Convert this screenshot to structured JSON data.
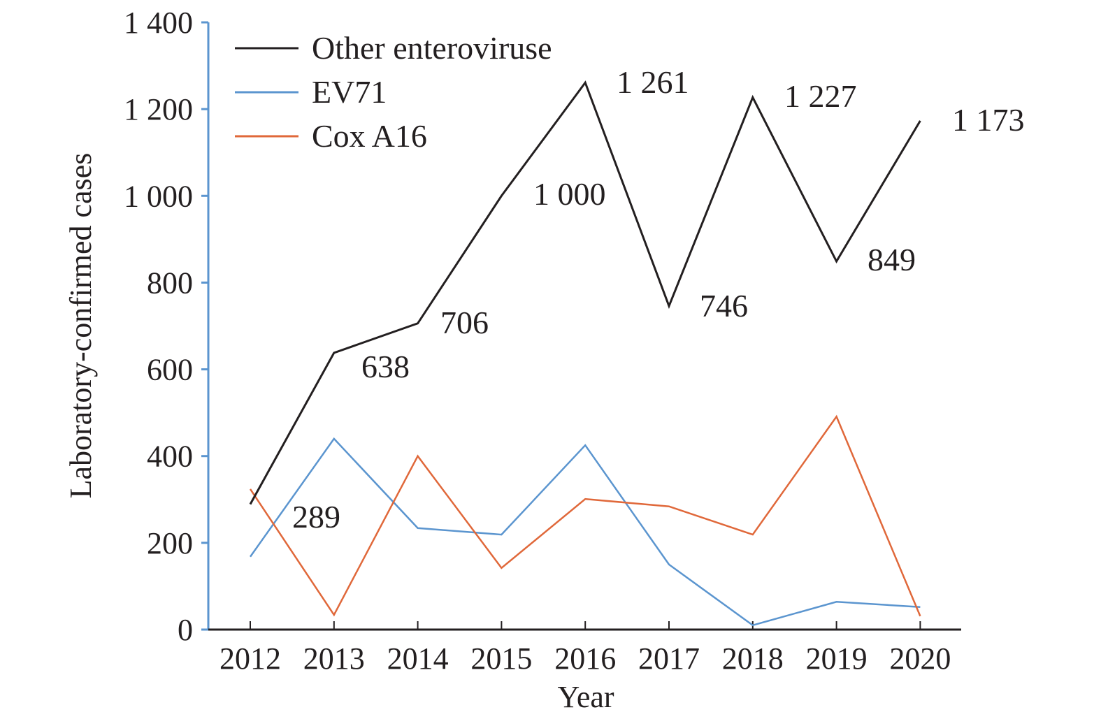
{
  "chart_data": {
    "type": "line",
    "title": "",
    "xlabel": "Year",
    "ylabel": "Laboratory-confirmed cases",
    "ylim": [
      0,
      1400
    ],
    "yticks": [
      "0",
      "200",
      "400",
      "600",
      "800",
      "1 000",
      "1 200",
      "1 400"
    ],
    "ytick_values": [
      0,
      200,
      400,
      600,
      800,
      1000,
      1200,
      1400
    ],
    "categories": [
      "2012",
      "2013",
      "2014",
      "2015",
      "2016",
      "2017",
      "2018",
      "2019",
      "2020"
    ],
    "grid": false,
    "legend_position": "top-left",
    "series": [
      {
        "name": "Other enteroviruse",
        "color": "#231f20",
        "values": [
          289,
          638,
          706,
          1000,
          1261,
          746,
          1227,
          849,
          1173
        ],
        "data_labels": [
          "289",
          "638",
          "706",
          "1 000",
          "1 261",
          "746",
          "1 227",
          "849",
          "1 173"
        ]
      },
      {
        "name": "EV71",
        "color": "#5b95cf",
        "values": [
          168,
          440,
          234,
          219,
          425,
          150,
          10,
          64,
          52
        ]
      },
      {
        "name": "Cox A16",
        "color": "#e0683a",
        "values": [
          324,
          34,
          400,
          142,
          301,
          284,
          219,
          491,
          31
        ]
      }
    ],
    "axis_colors": {
      "y_axis": "#5b95cf",
      "x_axis": "#231f20"
    }
  }
}
